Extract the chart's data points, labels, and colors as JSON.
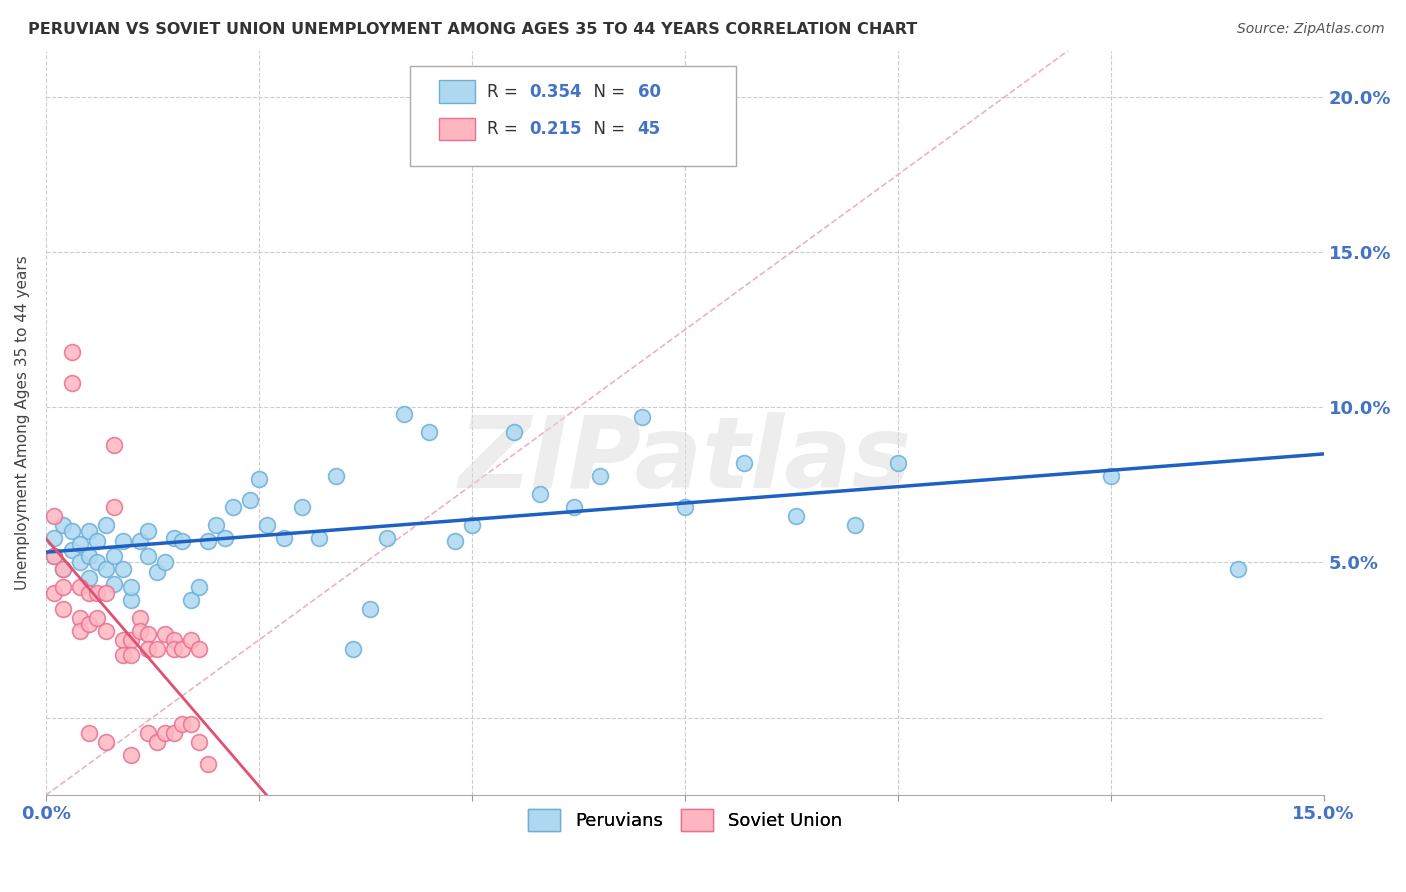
{
  "title": "PERUVIAN VS SOVIET UNION UNEMPLOYMENT AMONG AGES 35 TO 44 YEARS CORRELATION CHART",
  "source": "Source: ZipAtlas.com",
  "ylabel": "Unemployment Among Ages 35 to 44 years",
  "xlim": [
    0.0,
    0.15
  ],
  "ylim": [
    -0.025,
    0.215
  ],
  "xtick_pos": [
    0.0,
    0.025,
    0.05,
    0.075,
    0.1,
    0.125,
    0.15
  ],
  "ytick_pos": [
    0.0,
    0.05,
    0.1,
    0.15,
    0.2
  ],
  "yticklabels": [
    "",
    "5.0%",
    "10.0%",
    "15.0%",
    "20.0%"
  ],
  "peruvian_color": "#ADD8F0",
  "peruvian_edge": "#6BAED6",
  "soviet_color": "#FFB6C1",
  "soviet_edge": "#E87090",
  "peruvian_line_color": "#2060C0",
  "soviet_line_color": "#E05070",
  "diagonal_color": "#E8A0B0",
  "R_peruvian": 0.354,
  "N_peruvian": 60,
  "R_soviet": 0.215,
  "N_soviet": 45,
  "peruvian_x": [
    0.001,
    0.001,
    0.002,
    0.002,
    0.003,
    0.003,
    0.004,
    0.004,
    0.005,
    0.005,
    0.005,
    0.006,
    0.006,
    0.007,
    0.007,
    0.008,
    0.008,
    0.009,
    0.009,
    0.01,
    0.01,
    0.011,
    0.012,
    0.012,
    0.013,
    0.014,
    0.015,
    0.016,
    0.017,
    0.018,
    0.019,
    0.02,
    0.021,
    0.022,
    0.024,
    0.025,
    0.026,
    0.028,
    0.03,
    0.032,
    0.034,
    0.036,
    0.038,
    0.04,
    0.042,
    0.045,
    0.048,
    0.05,
    0.055,
    0.058,
    0.062,
    0.065,
    0.07,
    0.075,
    0.082,
    0.088,
    0.095,
    0.1,
    0.125,
    0.14
  ],
  "peruvian_y": [
    0.058,
    0.052,
    0.062,
    0.048,
    0.06,
    0.054,
    0.056,
    0.05,
    0.06,
    0.052,
    0.045,
    0.057,
    0.05,
    0.062,
    0.048,
    0.052,
    0.043,
    0.057,
    0.048,
    0.038,
    0.042,
    0.057,
    0.06,
    0.052,
    0.047,
    0.05,
    0.058,
    0.057,
    0.038,
    0.042,
    0.057,
    0.062,
    0.058,
    0.068,
    0.07,
    0.077,
    0.062,
    0.058,
    0.068,
    0.058,
    0.078,
    0.022,
    0.035,
    0.058,
    0.098,
    0.092,
    0.057,
    0.062,
    0.092,
    0.072,
    0.068,
    0.078,
    0.097,
    0.068,
    0.082,
    0.065,
    0.062,
    0.082,
    0.078,
    0.048
  ],
  "soviet_x": [
    0.001,
    0.001,
    0.001,
    0.002,
    0.002,
    0.002,
    0.003,
    0.003,
    0.004,
    0.004,
    0.004,
    0.005,
    0.005,
    0.005,
    0.006,
    0.006,
    0.007,
    0.007,
    0.007,
    0.008,
    0.008,
    0.009,
    0.009,
    0.01,
    0.01,
    0.01,
    0.011,
    0.011,
    0.012,
    0.012,
    0.012,
    0.013,
    0.013,
    0.014,
    0.014,
    0.015,
    0.015,
    0.015,
    0.016,
    0.016,
    0.017,
    0.017,
    0.018,
    0.018,
    0.019
  ],
  "soviet_y": [
    0.065,
    0.052,
    0.04,
    0.048,
    0.042,
    0.035,
    0.118,
    0.108,
    0.042,
    0.032,
    0.028,
    0.04,
    0.03,
    -0.005,
    0.04,
    0.032,
    0.04,
    0.028,
    -0.008,
    0.088,
    0.068,
    0.025,
    0.02,
    0.025,
    0.02,
    -0.012,
    0.032,
    0.028,
    0.027,
    0.022,
    -0.005,
    0.022,
    -0.008,
    0.027,
    -0.005,
    0.025,
    0.022,
    -0.005,
    0.022,
    -0.002,
    0.025,
    -0.002,
    0.022,
    -0.008,
    -0.015
  ],
  "watermark_text": "ZIPatlas",
  "background_color": "#FFFFFF",
  "grid_color": "#CCCCCC",
  "label_color": "#4472C4",
  "title_color": "#333333"
}
